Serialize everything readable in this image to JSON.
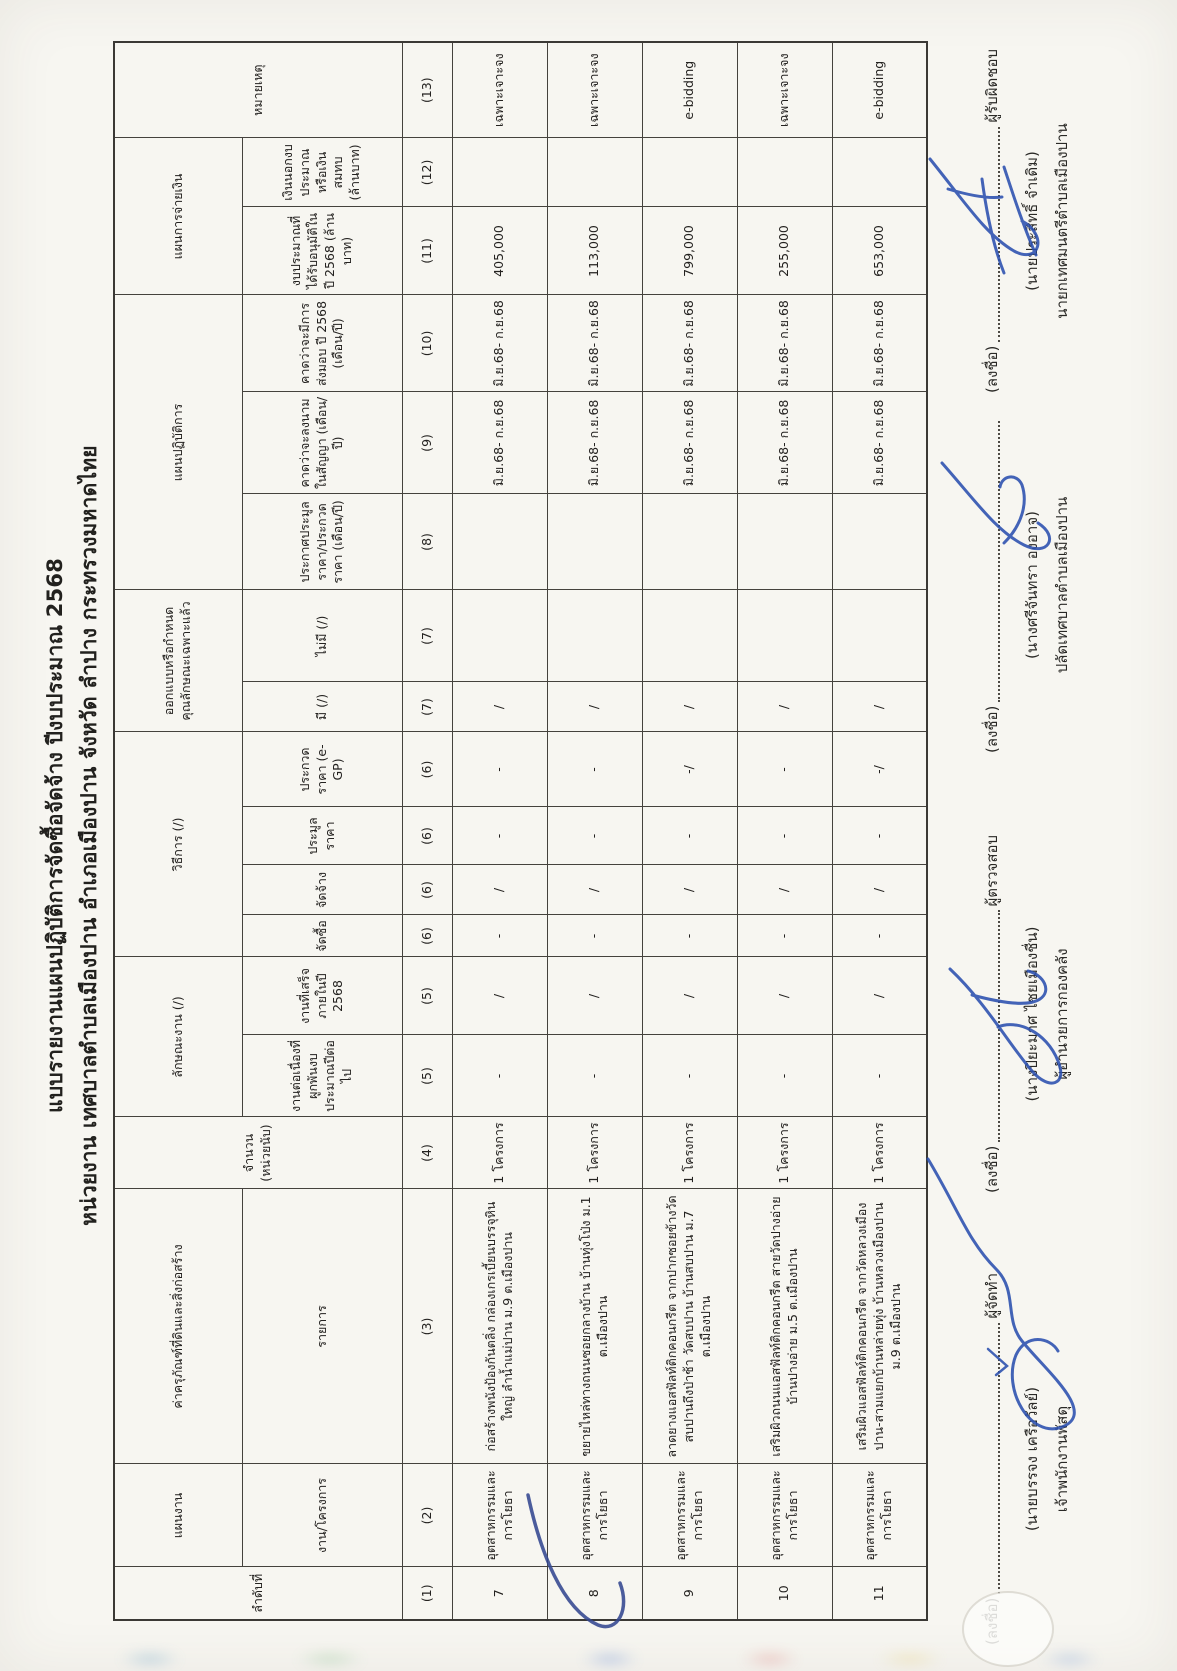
{
  "document": {
    "title_line1": "แบบรายงานแผนปฏิบัติการจัดซื้อจัดจ้าง ปีงบประมาณ 2568",
    "title_line2": "หน่วยงาน เทศบาลตำบลเมืองปาน อำเภอเมืองปาน จังหวัด ลำปาง กระทรวงมหาดไทย"
  },
  "table": {
    "group_headers": {
      "seq": "ลำดับที่",
      "plan": "แผนงาน",
      "assets": "ค่าครุภัณฑ์ที่ดินและสิ่งก่อสร้าง",
      "qty": "จำนวน (หน่วยนับ)",
      "nature": "ลักษณะงาน (/)",
      "method": "วิธีการ (/)",
      "design": "ออกแบบหรือกำหนดคุณลักษณะเฉพาะแล้ว",
      "action_plan": "แผนปฏิบัติการ",
      "payment_plan": "แผนการจ่ายเงิน",
      "remark": "หมายเหตุ"
    },
    "sub_headers": {
      "project": "งาน/โครงการ",
      "item": "รายการ",
      "carryover": "งานต่อเนื่องที่ผูกพันงบประมาณปีต่อไป",
      "finish_in_year": "งานที่เสร็จภายในปี 2568",
      "purchase": "จัดซื้อ",
      "hire": "จัดจ้าง",
      "auction": "ประมูลราคา",
      "bidding": "ประกวดราคา (e-GP)",
      "specified": "มี (/)",
      "not_specified": "ไม่มี (/)",
      "announce": "ประกาศประมูลราคา/ประกวดราคา (เดือน/ปี)",
      "sign_contract": "คาดว่าจะลงนามในสัญญา (เดือน/ปี)",
      "delivery": "คาดว่าจะมีการส่งมอบ ปี 2568 (เดือน/ปี)",
      "approved_budget": "งบประมาณที่ได้รับอนุมัติในปี 2568 (ล้านบาท)",
      "external_fund": "เงินนอกงบประมาณหรือเงินสมทบ (ล้านบาท)"
    },
    "column_numbers": [
      "(1)",
      "(2)",
      "(3)",
      "(4)",
      "(5)",
      "(5)",
      "(6)",
      "(6)",
      "(6)",
      "(6)",
      "(7)",
      "(7)",
      "(8)",
      "(9)",
      "(10)",
      "(11)",
      "(12)",
      "(13)"
    ],
    "rows": [
      [
        "7",
        "อุตสาหกรรมและการโยธา",
        "ก่อสร้างพนังป้องกันตลิ่ง กล่องเกรเบี้ยนบรรจุหินใหญ่ ลำน้ำแม่ปาน ม.9 ต.เมืองปาน",
        "1 โครงการ",
        "-",
        "/",
        "-",
        "/",
        "-",
        "-",
        "/",
        "",
        "",
        "มิ.ย.68- ก.ย.68",
        "มิ.ย.68- ก.ย.68",
        "405,000",
        "",
        "เฉพาะเจาะจง"
      ],
      [
        "8",
        "อุตสาหกรรมและการโยธา",
        "ขยายไหล่ทางถนนซอยกลางบ้าน บ้านทุ่งโป่ง ม.1 ต.เมืองปาน",
        "1 โครงการ",
        "-",
        "/",
        "-",
        "/",
        "-",
        "-",
        "/",
        "",
        "",
        "มิ.ย.68- ก.ย.68",
        "มิ.ย.68- ก.ย.68",
        "113,000",
        "",
        "เฉพาะเจาะจง"
      ],
      [
        "9",
        "อุตสาหกรรมและการโยธา",
        "ลาดยางแอสฟัลท์ติกคอนกรีต จากปากซอยข้างวัดสบปานถึงป่าช้า วัดสบปาน บ้านสบปาน ม.7 ต.เมืองปาน",
        "1 โครงการ",
        "-",
        "/",
        "-",
        "/",
        "-",
        "-/",
        "/",
        "",
        "",
        "มิ.ย.68- ก.ย.68",
        "มิ.ย.68- ก.ย.68",
        "799,000",
        "",
        "e-bidding"
      ],
      [
        "10",
        "อุตสาหกรรมและการโยธา",
        "เสริมผิวถนนแอสฟัลท์ติกคอนกรีต สายวัดปางอ่าย บ้านปางอ่าย ม.5 ต.เมืองปาน",
        "1 โครงการ",
        "-",
        "/",
        "-",
        "/",
        "-",
        "-",
        "/",
        "",
        "",
        "มิ.ย.68- ก.ย.68",
        "มิ.ย.68- ก.ย.68",
        "255,000",
        "",
        "เฉพาะเจาะจง"
      ],
      [
        "11",
        "อุตสาหกรรมและการโยธา",
        "เสริมผิวแอสฟัลท์ติกคอนกรีต จากวัดหลวงเมืองปาน-สามแยกบ้านหล่ายทุ่ง บ้านหลวงเมืองปาน ม.9 ต.เมืองปาน",
        "1 โครงการ",
        "-",
        "/",
        "-",
        "/",
        "-",
        "-/",
        "/",
        "",
        "",
        "มิ.ย.68- ก.ย.68",
        "มิ.ย.68- ก.ย.68",
        "653,000",
        "",
        "e-bidding"
      ]
    ]
  },
  "signatures": {
    "blocks": [
      {
        "label": "(ลงชื่อ)",
        "role": "ผู้จัดทำ",
        "name": "(นายบรรจง เครือวัลย์)",
        "title": "เจ้าพนักงานพัสดุ"
      },
      {
        "label": "(ลงชื่อ)",
        "role": "ผู้ตรวจสอบ",
        "name": "(นางปิยะมาศ ไชยเมืองชื่น)",
        "title": "ผู้อำนวยการกองคลัง"
      },
      {
        "label": "(ลงชื่อ)",
        "role": "",
        "name": "(นางศรีจันทรา องอาจ)",
        "title": "ปลัดเทศบาลตำบลเมืองปาน"
      },
      {
        "label": "(ลงชื่อ)",
        "role": "ผู้รับผิดชอบ",
        "name": "(นายประสิทธิ์ จำเดิม)",
        "title": "นายกเทศมนตรีตำบลเมืองปาน"
      }
    ],
    "ink_color": "#2a4fae"
  }
}
